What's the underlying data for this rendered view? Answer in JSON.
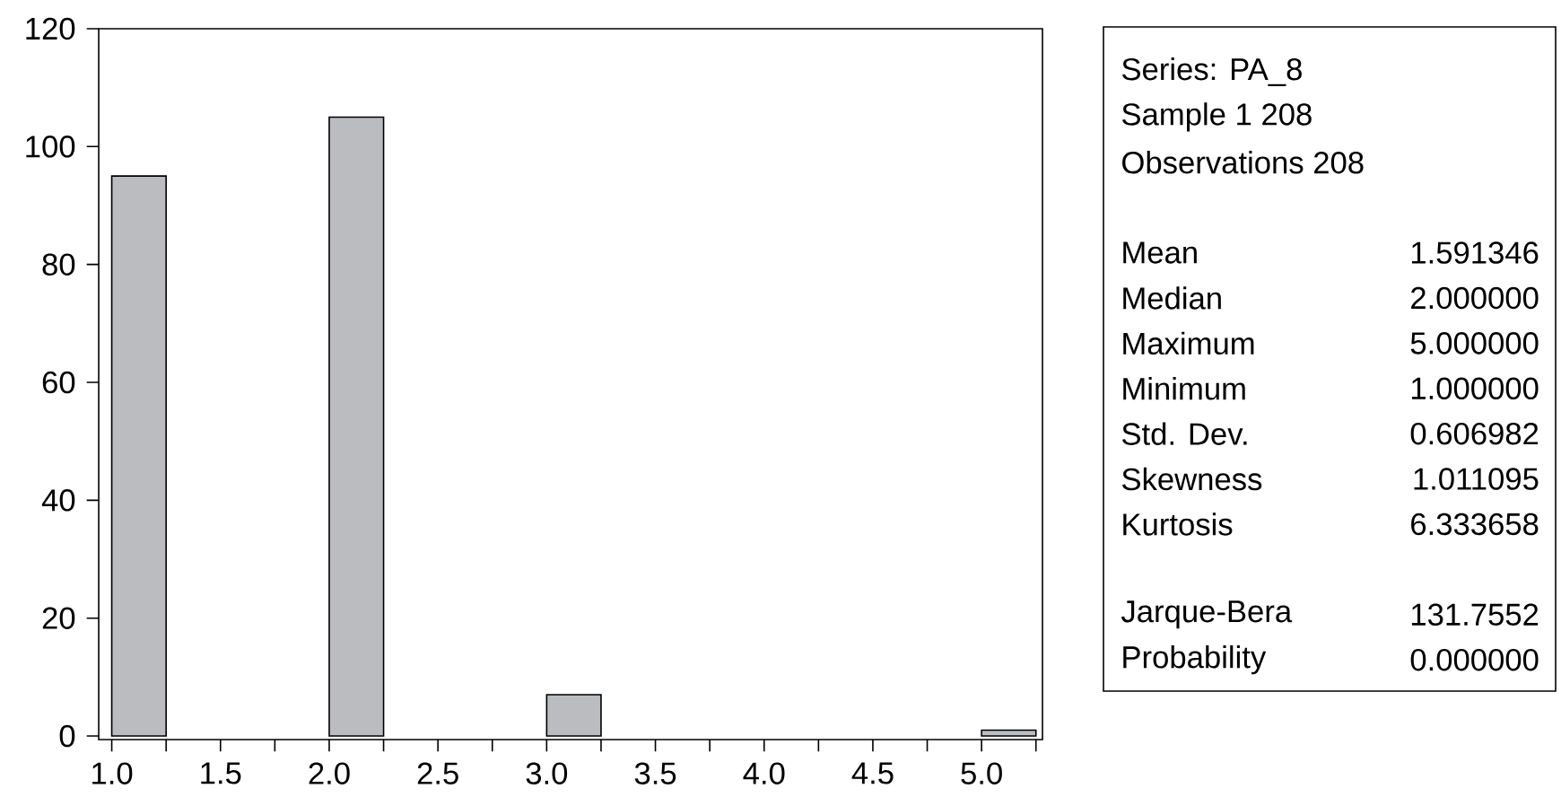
{
  "chart_data": [
    {
      "type": "histogram",
      "bins": [
        1.0,
        1.25,
        1.5,
        1.75,
        2.0,
        2.25,
        2.5,
        2.75,
        3.0,
        3.25,
        3.5,
        3.75,
        4.0,
        4.25,
        4.5,
        4.75,
        5.0,
        5.25
      ],
      "values": [
        95,
        0,
        0,
        0,
        105,
        0,
        0,
        0,
        7,
        0,
        0,
        0,
        0,
        0,
        0,
        0,
        1
      ],
      "color": "#bbbcc0",
      "xlim": [
        0.94,
        5.28
      ],
      "ylim": [
        -0.6,
        120
      ],
      "xticks": [
        {
          "value": 1.0,
          "label": "1.0"
        },
        {
          "value": 1.25,
          "label": null
        },
        {
          "value": 1.5,
          "label": "1.5"
        },
        {
          "value": 1.75,
          "label": null
        },
        {
          "value": 2.0,
          "label": "2.0"
        },
        {
          "value": 2.25,
          "label": null
        },
        {
          "value": 2.5,
          "label": "2.5"
        },
        {
          "value": 2.75,
          "label": null
        },
        {
          "value": 3.0,
          "label": "3.0"
        },
        {
          "value": 3.25,
          "label": null
        },
        {
          "value": 3.5,
          "label": "3.5"
        },
        {
          "value": 3.75,
          "label": null
        },
        {
          "value": 4.0,
          "label": "4.0"
        },
        {
          "value": 4.25,
          "label": null
        },
        {
          "value": 4.5,
          "label": "4.5"
        },
        {
          "value": 4.75,
          "label": null
        },
        {
          "value": 5.0,
          "label": "5.0"
        },
        {
          "value": 5.25,
          "label": null
        }
      ],
      "yticks": [
        0,
        20,
        40,
        60,
        80,
        100,
        120
      ],
      "grid": false
    },
    {
      "type": "other",
      "annotations": [
        "Series: PA_8",
        "Sample 1 208",
        "Observations 208",
        "Mean",
        "1.591346",
        "Median",
        "2.000000",
        "Maximum",
        "5.000000",
        "Minimum",
        "1.000000",
        "Std. Dev.",
        "0.606982",
        "Skewness",
        "1.011095",
        "Kurtosis",
        "6.333658",
        "Jarque-Bera",
        "131.7552",
        "Probability",
        "0.000000"
      ]
    }
  ]
}
